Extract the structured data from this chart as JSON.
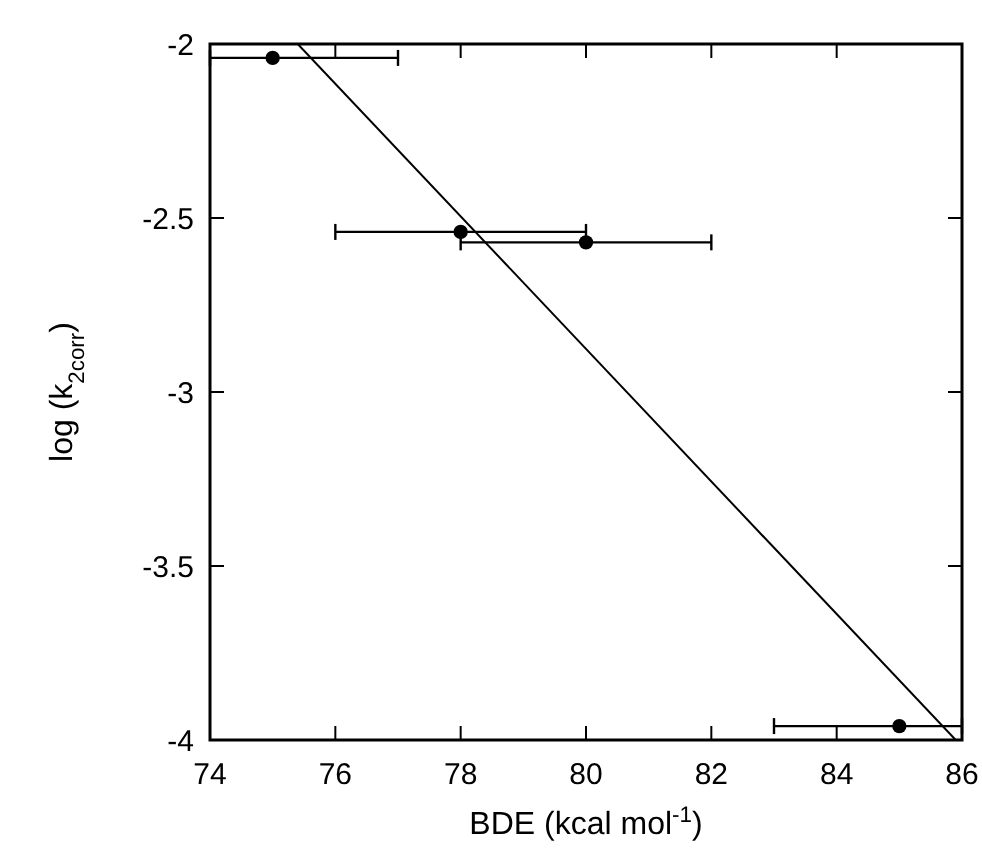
{
  "chart_data": {
    "type": "scatter",
    "xlabel": "BDE (kcal mol$^{-1}$)",
    "ylabel": "log (k$_{2corr}$)",
    "xlim": [
      74,
      86
    ],
    "ylim": [
      -4,
      -2
    ],
    "xticks": [
      74,
      76,
      78,
      80,
      82,
      84,
      86
    ],
    "yticks": [
      -4,
      -3.5,
      -3,
      -2.5,
      -2
    ],
    "grid": false,
    "series": [
      {
        "color": "#000000",
        "marker": "circle",
        "x": [
          75,
          78,
          80,
          85
        ],
        "values": [
          -2.04,
          -2.54,
          -2.57,
          -3.96
        ],
        "xerrors": [
          [
            74,
            77
          ],
          2,
          2,
          [
            83,
            86
          ]
        ]
      },
      {
        "type": "line",
        "marker": "none",
        "color": "#000000",
        "x": [
          75.4,
          85.9
        ],
        "values": [
          -2,
          -4
        ]
      }
    ]
  }
}
